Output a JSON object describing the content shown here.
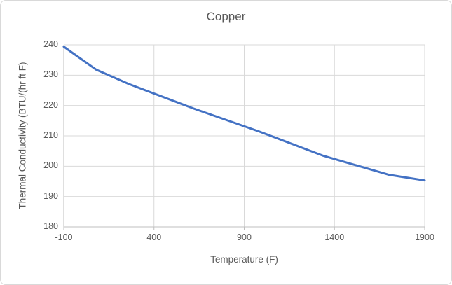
{
  "chart": {
    "title": "Copper",
    "x_axis_title": "Temperature (F)",
    "y_axis_title": "Thermal Conductivity (BTU/(hr ft F)"
  },
  "chart_data": {
    "type": "line",
    "title": "Copper",
    "xlabel": "Temperature (F)",
    "ylabel": "Thermal Conductivity (BTU/(hr ft F)",
    "x": [
      -100,
      80,
      260,
      620,
      980,
      1340,
      1700,
      1900
    ],
    "y": [
      239.4,
      231.8,
      227.1,
      219.0,
      211.5,
      203.4,
      197.2,
      195.3
    ],
    "xlim": [
      -100,
      1900
    ],
    "ylim": [
      180,
      240
    ],
    "xticks": [
      -100,
      400,
      900,
      1400,
      1900
    ],
    "yticks": [
      180,
      190,
      200,
      210,
      220,
      230,
      240
    ],
    "grid": true,
    "legend": "none",
    "line_color": "#4472C4",
    "gridline_color": "#D9D9D9",
    "axis_color": "#BFBFBF",
    "text_color": "#595959"
  }
}
